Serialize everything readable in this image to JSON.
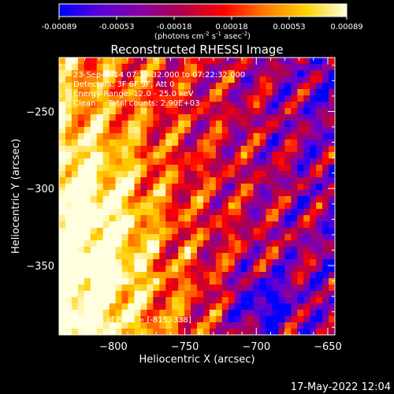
{
  "colorbar": {
    "ticks": [
      "-0.00089",
      "-0.00053",
      "-0.00018",
      "0.00018",
      "0.00053",
      "0.00089"
    ],
    "range": [
      -0.00089,
      0.00089
    ],
    "units_parts": [
      "(photons cm",
      "-2",
      " s",
      "-1",
      " asec",
      "-2",
      ")"
    ],
    "colors": [
      "#0000ff",
      "#5a00d8",
      "#8a00a0",
      "#b0004a",
      "#ff0000",
      "#ff7a00",
      "#ffd000",
      "#ffffe0"
    ]
  },
  "chart_data": {
    "type": "heatmap",
    "title": "Reconstructed RHESSI Image",
    "xlabel": "Heliocentric X (arcsec)",
    "ylabel": "Heliocentric Y (arcsec)",
    "xlim": [
      -838,
      -645
    ],
    "ylim": [
      -395,
      -215
    ],
    "xticks": [
      -800,
      -750,
      -700,
      -650
    ],
    "yticks": [
      -250,
      -300,
      -350
    ],
    "xtick_labels": [
      "−800",
      "−750",
      "−700",
      "−650"
    ],
    "ytick_labels": [
      "−250",
      "−300",
      "−350"
    ],
    "annotations": [
      "23-Sep-2014 07:16:32.000 to 07:22:32.000",
      "Detectors: 3F 6F 9F, Att 0",
      "Energy Range: 12.0 - 25.0 keV",
      "Clean     Total counts: 2.90E+03"
    ],
    "peak_label": "Position of Peak = [-815,-338]",
    "peak": [
      -815,
      -338
    ],
    "value_range": [
      -0.00089,
      0.00089
    ]
  },
  "footer": {
    "timestamp": "17-May-2022 12:04"
  }
}
